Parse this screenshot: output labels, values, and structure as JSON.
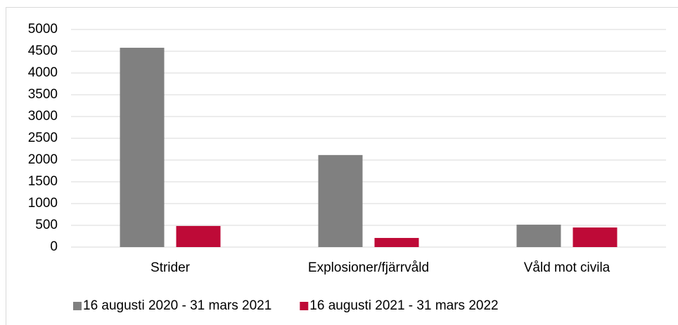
{
  "chart_data": {
    "type": "bar",
    "categories": [
      "Strider",
      "Explosioner/fjärrvåld",
      "Våld mot civila"
    ],
    "series": [
      {
        "name": "16 augusti 2020 - 31 mars 2021",
        "color": "#808080",
        "values": [
          4580,
          2115,
          515
        ]
      },
      {
        "name": "16 augusti 2021 - 31 mars 2022",
        "color": "#be0a37",
        "values": [
          485,
          210,
          450
        ]
      }
    ],
    "ylim": [
      0,
      5000
    ],
    "yticks": [
      0,
      500,
      1000,
      1500,
      2000,
      2500,
      3000,
      3500,
      4000,
      4500,
      5000
    ],
    "grid": true,
    "legend": "bottom"
  }
}
